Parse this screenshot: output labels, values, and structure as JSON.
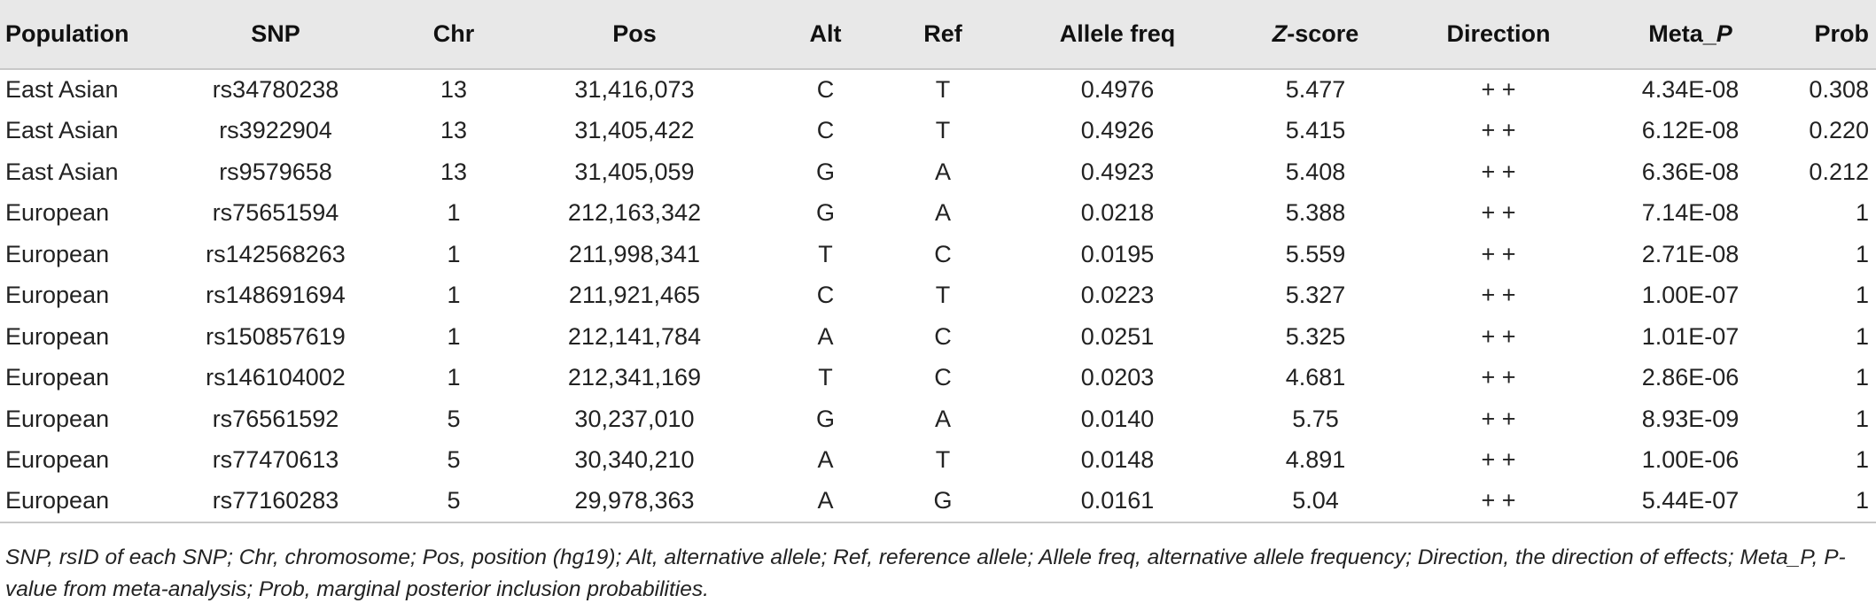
{
  "table": {
    "headers": {
      "population": "Population",
      "snp": "SNP",
      "chr": "Chr",
      "pos": "Pos",
      "alt": "Alt",
      "ref": "Ref",
      "allele_freq": "Allele freq",
      "z_prefix": "Z",
      "z_suffix": "-score",
      "direction": "Direction",
      "meta_prefix": "Meta_",
      "meta_suffix": "P",
      "prob": "Prob"
    },
    "rows": [
      [
        "East Asian",
        "rs34780238",
        "13",
        "31,416,073",
        "C",
        "T",
        "0.4976",
        "5.477",
        "+ +",
        "4.34E-08",
        "0.308"
      ],
      [
        "East Asian",
        "rs3922904",
        "13",
        "31,405,422",
        "C",
        "T",
        "0.4926",
        "5.415",
        "+ +",
        "6.12E-08",
        "0.220"
      ],
      [
        "East Asian",
        "rs9579658",
        "13",
        "31,405,059",
        "G",
        "A",
        "0.4923",
        "5.408",
        "+ +",
        "6.36E-08",
        "0.212"
      ],
      [
        "European",
        "rs75651594",
        "1",
        "212,163,342",
        "G",
        "A",
        "0.0218",
        "5.388",
        "+ +",
        "7.14E-08",
        "1"
      ],
      [
        "European",
        "rs142568263",
        "1",
        "211,998,341",
        "T",
        "C",
        "0.0195",
        "5.559",
        "+ +",
        "2.71E-08",
        "1"
      ],
      [
        "European",
        "rs148691694",
        "1",
        "211,921,465",
        "C",
        "T",
        "0.0223",
        "5.327",
        "+ +",
        "1.00E-07",
        "1"
      ],
      [
        "European",
        "rs150857619",
        "1",
        "212,141,784",
        "A",
        "C",
        "0.0251",
        "5.325",
        "+ +",
        "1.01E-07",
        "1"
      ],
      [
        "European",
        "rs146104002",
        "1",
        "212,341,169",
        "T",
        "C",
        "0.0203",
        "4.681",
        "+ +",
        "2.86E-06",
        "1"
      ],
      [
        "European",
        "rs76561592",
        "5",
        "30,237,010",
        "G",
        "A",
        "0.0140",
        "5.75",
        "+ +",
        "8.93E-09",
        "1"
      ],
      [
        "European",
        "rs77470613",
        "5",
        "30,340,210",
        "A",
        "T",
        "0.0148",
        "4.891",
        "+ +",
        "1.00E-06",
        "1"
      ],
      [
        "European",
        "rs77160283",
        "5",
        "29,978,363",
        "A",
        "G",
        "0.0161",
        "5.04",
        "+ +",
        "5.44E-07",
        "1"
      ]
    ]
  },
  "footnote": "SNP, rsID of each SNP; Chr, chromosome; Pos, position (hg19); Alt, alternative allele; Ref, reference allele; Allele freq, alternative allele frequency; Direction, the direction of effects; Meta_P, P-value from meta-analysis; Prob, marginal posterior inclusion probabilities.",
  "colors": {
    "header_background": "#e8e8e8",
    "rule": "#c8c8c8",
    "text": "#222222"
  }
}
